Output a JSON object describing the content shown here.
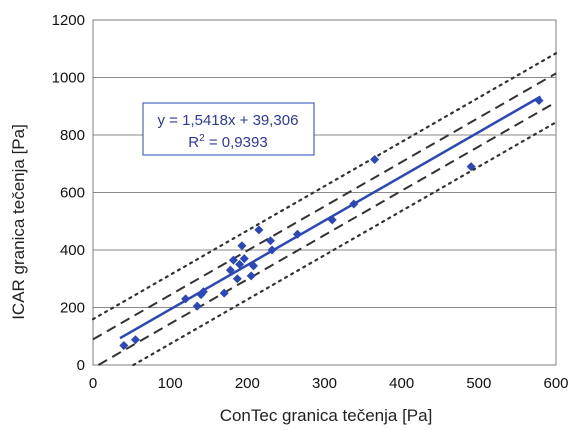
{
  "chart_data": {
    "type": "scatter",
    "title": "",
    "xlabel": "ConTec granica tečenja [Pa]",
    "ylabel": "ICAR granica tečenja [Pa]",
    "xlim": [
      0,
      600
    ],
    "ylim": [
      0,
      1200
    ],
    "x_ticks": [
      "0",
      "100",
      "200",
      "300",
      "400",
      "500",
      "600"
    ],
    "y_ticks": [
      "0",
      "200",
      "400",
      "600",
      "800",
      "1000",
      "1200"
    ],
    "grid": true,
    "legend": "none",
    "series": [
      {
        "marker": "diamond",
        "color": "#2b47b8",
        "points": [
          {
            "x": 40,
            "y": 68
          },
          {
            "x": 55,
            "y": 88
          },
          {
            "x": 120,
            "y": 230
          },
          {
            "x": 135,
            "y": 205
          },
          {
            "x": 140,
            "y": 245
          },
          {
            "x": 143,
            "y": 255
          },
          {
            "x": 170,
            "y": 250
          },
          {
            "x": 178,
            "y": 330
          },
          {
            "x": 182,
            "y": 365
          },
          {
            "x": 187,
            "y": 300
          },
          {
            "x": 190,
            "y": 350
          },
          {
            "x": 193,
            "y": 415
          },
          {
            "x": 196,
            "y": 370
          },
          {
            "x": 205,
            "y": 310
          },
          {
            "x": 208,
            "y": 345
          },
          {
            "x": 215,
            "y": 470
          },
          {
            "x": 230,
            "y": 432
          },
          {
            "x": 232,
            "y": 400
          },
          {
            "x": 265,
            "y": 455
          },
          {
            "x": 310,
            "y": 505
          },
          {
            "x": 338,
            "y": 560
          },
          {
            "x": 365,
            "y": 715
          },
          {
            "x": 490,
            "y": 690
          },
          {
            "x": 578,
            "y": 920
          }
        ]
      }
    ],
    "trendline": {
      "slope": 1.5418,
      "intercept": 39.306,
      "color": "#2b47b8",
      "x_range": [
        35,
        580
      ]
    },
    "bands": [
      {
        "style": "dashed",
        "offsets": [
          50,
          -50
        ]
      },
      {
        "style": "dotted",
        "offsets": [
          120,
          -120
        ]
      }
    ],
    "annotation": {
      "equation": "y = 1,5418x + 39,306",
      "r2_label": "R",
      "r2_sup": "2",
      "r2_value": " = 0,9393",
      "border_color": "#2b47b8"
    }
  }
}
